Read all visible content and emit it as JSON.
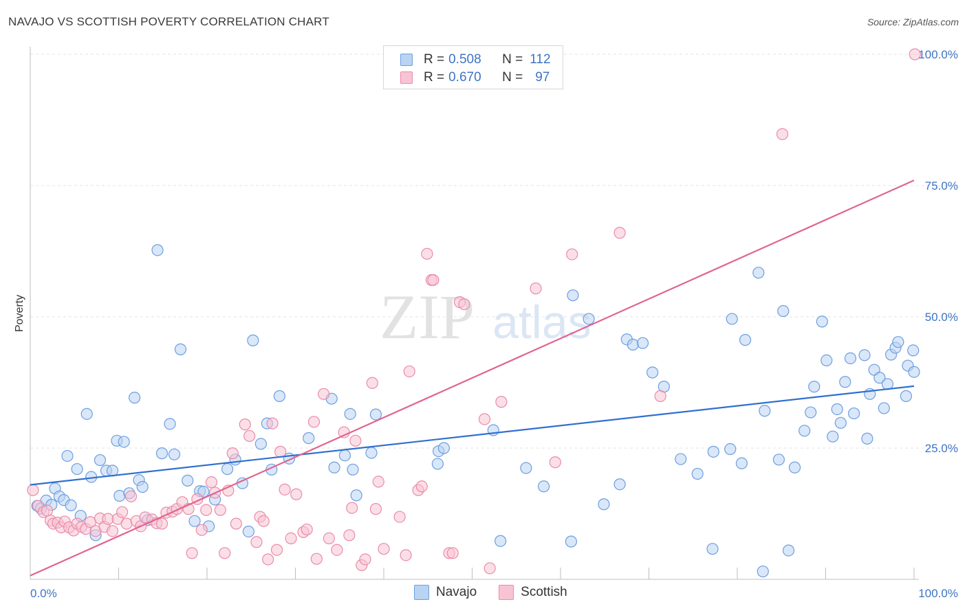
{
  "title": "NAVAJO VS SCOTTISH POVERTY CORRELATION CHART",
  "source": "Source: ZipAtlas.com",
  "watermark": {
    "part1": "ZIP",
    "part2": "atlas"
  },
  "legend": {
    "series": [
      {
        "r_label": "R =",
        "r_value": "0.508",
        "n_label": "N =",
        "n_value": "112"
      },
      {
        "r_label": "R =",
        "r_value": "0.670",
        "n_label": "N =",
        "n_value": "97"
      }
    ]
  },
  "bottom_legend": [
    "Navajo",
    "Scottish"
  ],
  "colors": {
    "navajo_fill": "#b9d3f2",
    "navajo_stroke": "#6c9ee0",
    "navajo_line": "#2f6fd0",
    "scottish_fill": "#f8c4d4",
    "scottish_stroke": "#ea8aa9",
    "scottish_line": "#e0648e",
    "axis_text": "#3d73c5"
  },
  "chart_data": {
    "type": "scatter",
    "title": "NAVAJO VS SCOTTISH POVERTY CORRELATION CHART",
    "xlabel": "",
    "ylabel": "Poverty",
    "xlim": [
      0,
      100
    ],
    "ylim": [
      0,
      100
    ],
    "x_tick_labels": [
      "0.0%",
      "100.0%"
    ],
    "y_ticks": [
      25,
      50,
      75,
      100
    ],
    "y_tick_labels": [
      "25.0%",
      "50.0%",
      "75.0%",
      "100.0%"
    ],
    "grid": true,
    "series": [
      {
        "name": "Navajo",
        "trend": [
          [
            0,
            18.0
          ],
          [
            100,
            36.8
          ]
        ],
        "points": [
          [
            0.8,
            14.0
          ],
          [
            1.2,
            13.5
          ],
          [
            1.8,
            15.0
          ],
          [
            2.4,
            14.2
          ],
          [
            2.8,
            17.3
          ],
          [
            3.3,
            15.8
          ],
          [
            3.8,
            15.1
          ],
          [
            4.2,
            23.5
          ],
          [
            4.6,
            14.1
          ],
          [
            5.3,
            21.0
          ],
          [
            5.7,
            12.1
          ],
          [
            6.4,
            31.5
          ],
          [
            6.9,
            19.5
          ],
          [
            7.4,
            8.4
          ],
          [
            7.9,
            22.7
          ],
          [
            8.6,
            20.7
          ],
          [
            9.3,
            20.7
          ],
          [
            9.8,
            26.4
          ],
          [
            10.1,
            15.9
          ],
          [
            10.6,
            26.2
          ],
          [
            11.2,
            16.4
          ],
          [
            11.8,
            34.6
          ],
          [
            12.3,
            18.9
          ],
          [
            12.7,
            17.6
          ],
          [
            13.3,
            11.3
          ],
          [
            14.4,
            62.7
          ],
          [
            14.9,
            24.0
          ],
          [
            15.8,
            29.6
          ],
          [
            16.3,
            23.8
          ],
          [
            17.0,
            43.8
          ],
          [
            17.8,
            18.8
          ],
          [
            18.6,
            11.1
          ],
          [
            19.2,
            16.8
          ],
          [
            19.6,
            16.7
          ],
          [
            20.2,
            10.1
          ],
          [
            20.9,
            15.2
          ],
          [
            22.3,
            21.0
          ],
          [
            23.2,
            22.8
          ],
          [
            24.0,
            18.3
          ],
          [
            24.7,
            9.1
          ],
          [
            25.2,
            45.5
          ],
          [
            26.1,
            25.8
          ],
          [
            26.8,
            29.7
          ],
          [
            27.3,
            20.9
          ],
          [
            28.2,
            34.9
          ],
          [
            29.3,
            23.0
          ],
          [
            31.5,
            26.9
          ],
          [
            34.1,
            34.4
          ],
          [
            34.4,
            21.3
          ],
          [
            35.6,
            23.6
          ],
          [
            36.2,
            31.5
          ],
          [
            36.5,
            20.9
          ],
          [
            36.9,
            16.0
          ],
          [
            38.6,
            24.1
          ],
          [
            39.1,
            31.4
          ],
          [
            46.1,
            22.0
          ],
          [
            46.2,
            24.4
          ],
          [
            46.8,
            25.0
          ],
          [
            52.4,
            28.4
          ],
          [
            53.2,
            7.3
          ],
          [
            56.1,
            21.2
          ],
          [
            58.1,
            17.7
          ],
          [
            61.2,
            7.2
          ],
          [
            61.4,
            54.1
          ],
          [
            63.2,
            49.6
          ],
          [
            64.9,
            14.3
          ],
          [
            66.7,
            18.1
          ],
          [
            67.5,
            45.7
          ],
          [
            68.2,
            44.7
          ],
          [
            69.3,
            45.0
          ],
          [
            70.4,
            39.4
          ],
          [
            71.7,
            36.7
          ],
          [
            73.6,
            22.9
          ],
          [
            75.5,
            20.1
          ],
          [
            77.2,
            5.8
          ],
          [
            79.2,
            24.8
          ],
          [
            79.4,
            49.6
          ],
          [
            80.5,
            22.1
          ],
          [
            80.9,
            45.6
          ],
          [
            82.4,
            58.4
          ],
          [
            83.1,
            32.1
          ],
          [
            84.7,
            22.8
          ],
          [
            85.2,
            51.1
          ],
          [
            85.8,
            5.5
          ],
          [
            86.5,
            21.3
          ],
          [
            87.6,
            28.3
          ],
          [
            88.3,
            31.8
          ],
          [
            88.7,
            36.7
          ],
          [
            89.6,
            49.1
          ],
          [
            90.1,
            41.7
          ],
          [
            90.8,
            27.2
          ],
          [
            91.3,
            32.4
          ],
          [
            91.7,
            29.8
          ],
          [
            92.2,
            37.6
          ],
          [
            92.8,
            42.1
          ],
          [
            93.2,
            31.6
          ],
          [
            94.4,
            42.7
          ],
          [
            94.7,
            26.8
          ],
          [
            95.0,
            35.3
          ],
          [
            95.5,
            39.9
          ],
          [
            96.1,
            38.4
          ],
          [
            96.6,
            32.6
          ],
          [
            97.0,
            37.2
          ],
          [
            97.4,
            42.8
          ],
          [
            97.9,
            44.1
          ],
          [
            98.2,
            45.2
          ],
          [
            99.1,
            34.9
          ],
          [
            99.3,
            40.7
          ],
          [
            100.0,
            39.5
          ],
          [
            99.9,
            43.6
          ],
          [
            77.3,
            24.3
          ],
          [
            82.9,
            1.5
          ]
        ]
      },
      {
        "name": "Scottish",
        "trend": [
          [
            0,
            0.7
          ],
          [
            100,
            76.0
          ]
        ],
        "points": [
          [
            0.3,
            17.0
          ],
          [
            0.9,
            14.0
          ],
          [
            1.5,
            12.8
          ],
          [
            1.9,
            13.1
          ],
          [
            2.3,
            11.2
          ],
          [
            2.6,
            10.6
          ],
          [
            3.1,
            10.8
          ],
          [
            3.5,
            9.9
          ],
          [
            3.9,
            11.0
          ],
          [
            4.4,
            9.9
          ],
          [
            4.9,
            9.3
          ],
          [
            5.3,
            10.6
          ],
          [
            5.8,
            10.0
          ],
          [
            6.3,
            9.6
          ],
          [
            6.8,
            10.9
          ],
          [
            7.4,
            9.2
          ],
          [
            7.9,
            11.6
          ],
          [
            8.4,
            10.0
          ],
          [
            8.8,
            11.5
          ],
          [
            9.3,
            9.2
          ],
          [
            9.9,
            11.5
          ],
          [
            10.4,
            12.8
          ],
          [
            10.9,
            10.6
          ],
          [
            11.4,
            15.8
          ],
          [
            12.0,
            11.1
          ],
          [
            12.5,
            10.1
          ],
          [
            13.0,
            11.8
          ],
          [
            13.8,
            11.4
          ],
          [
            14.3,
            10.7
          ],
          [
            14.9,
            10.6
          ],
          [
            15.4,
            12.7
          ],
          [
            16.1,
            12.9
          ],
          [
            16.6,
            13.4
          ],
          [
            17.2,
            14.7
          ],
          [
            17.9,
            13.4
          ],
          [
            18.3,
            5.0
          ],
          [
            18.9,
            15.3
          ],
          [
            19.4,
            9.4
          ],
          [
            19.9,
            13.2
          ],
          [
            20.5,
            18.5
          ],
          [
            20.9,
            16.5
          ],
          [
            21.5,
            13.2
          ],
          [
            22.0,
            5.0
          ],
          [
            22.4,
            16.9
          ],
          [
            22.9,
            24.0
          ],
          [
            23.3,
            10.6
          ],
          [
            24.3,
            29.5
          ],
          [
            24.8,
            27.3
          ],
          [
            25.6,
            7.1
          ],
          [
            26.0,
            11.9
          ],
          [
            26.4,
            11.1
          ],
          [
            26.9,
            3.8
          ],
          [
            27.4,
            29.7
          ],
          [
            27.9,
            5.6
          ],
          [
            28.3,
            24.3
          ],
          [
            28.8,
            17.1
          ],
          [
            29.5,
            7.8
          ],
          [
            30.1,
            16.2
          ],
          [
            30.9,
            9.0
          ],
          [
            31.3,
            9.5
          ],
          [
            32.1,
            30.0
          ],
          [
            32.4,
            3.9
          ],
          [
            33.2,
            35.3
          ],
          [
            33.8,
            7.8
          ],
          [
            34.7,
            5.6
          ],
          [
            35.5,
            28.0
          ],
          [
            36.1,
            8.4
          ],
          [
            36.4,
            13.6
          ],
          [
            36.8,
            26.4
          ],
          [
            37.5,
            2.7
          ],
          [
            37.9,
            3.8
          ],
          [
            38.7,
            37.4
          ],
          [
            39.1,
            13.4
          ],
          [
            39.4,
            18.6
          ],
          [
            40.0,
            5.8
          ],
          [
            41.8,
            11.9
          ],
          [
            42.5,
            4.6
          ],
          [
            42.9,
            39.6
          ],
          [
            43.9,
            17.0
          ],
          [
            44.3,
            17.7
          ],
          [
            44.9,
            62.0
          ],
          [
            45.4,
            57.0
          ],
          [
            45.6,
            57.0
          ],
          [
            47.4,
            5.0
          ],
          [
            47.8,
            5.0
          ],
          [
            48.6,
            52.8
          ],
          [
            49.1,
            52.4
          ],
          [
            51.4,
            30.5
          ],
          [
            52.0,
            2.1
          ],
          [
            53.3,
            33.8
          ],
          [
            57.2,
            55.4
          ],
          [
            59.4,
            22.3
          ],
          [
            61.3,
            61.9
          ],
          [
            66.7,
            66.0
          ],
          [
            71.3,
            34.9
          ],
          [
            85.1,
            84.8
          ],
          [
            100.1,
            100.0
          ]
        ]
      }
    ]
  }
}
